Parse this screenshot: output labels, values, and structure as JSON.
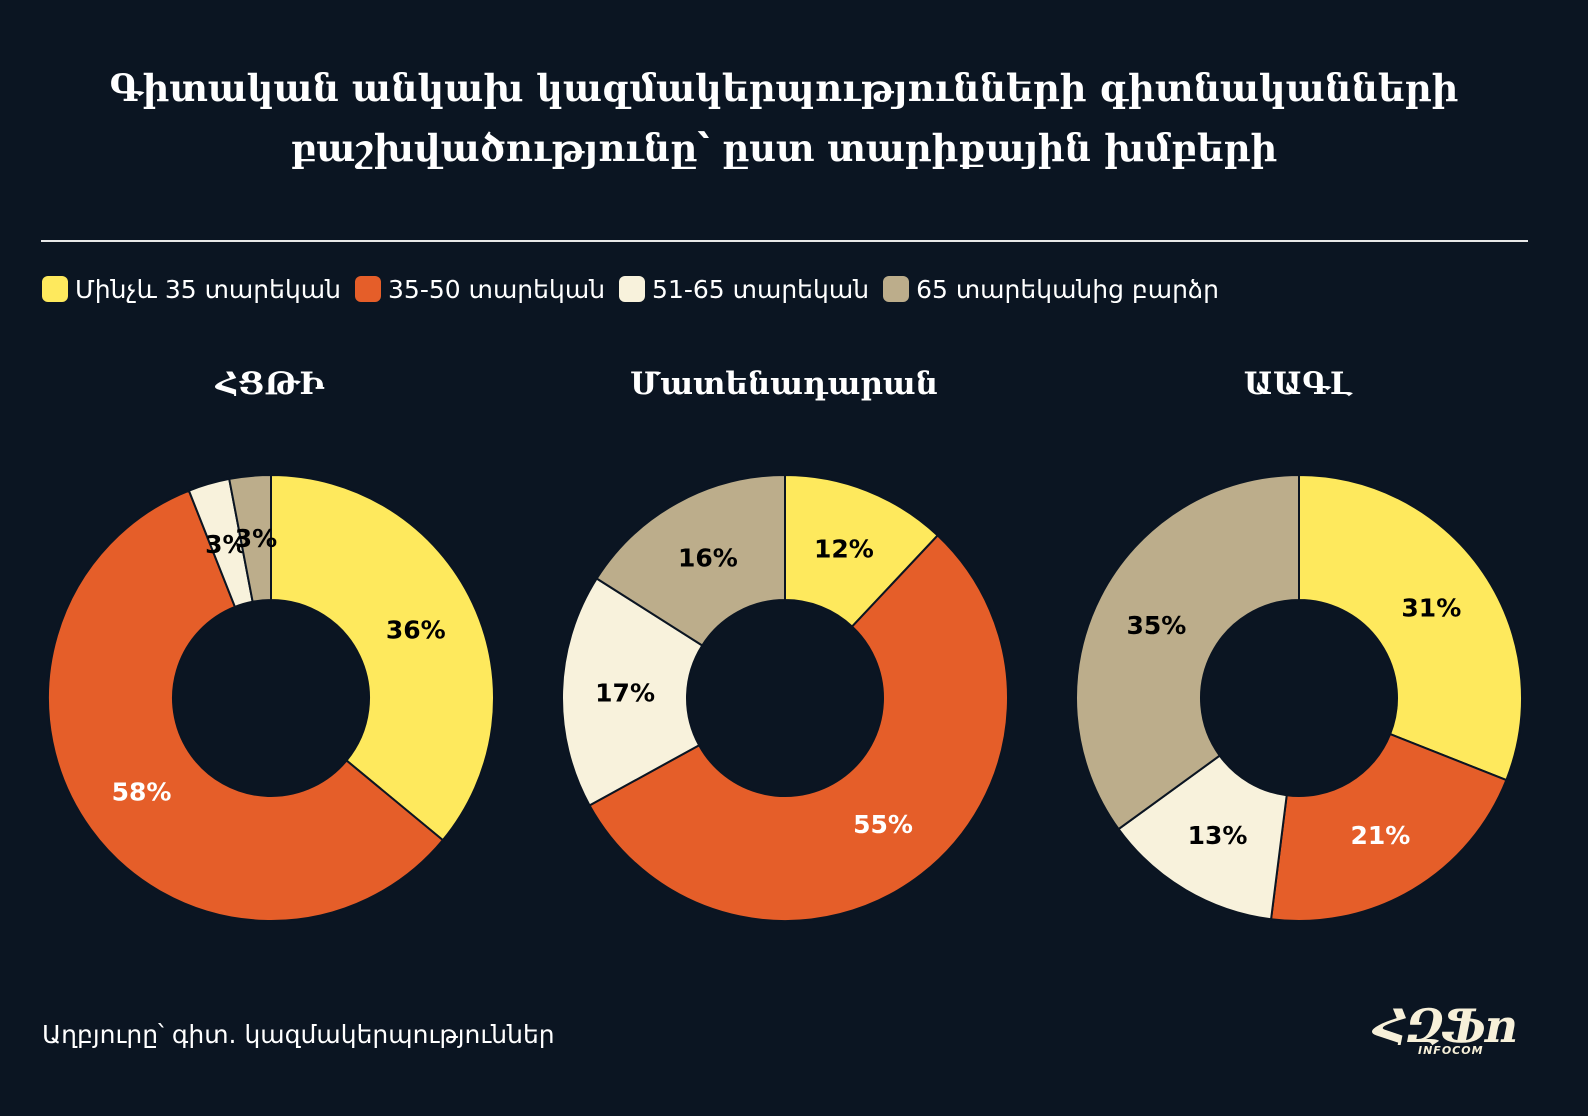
{
  "title": {
    "line1": "Գիտական անկախ կազմակերպությունների գիտնականների",
    "line2": "բաշխվածությունը՝ ըստ տարիքային խմբերի"
  },
  "legend": [
    {
      "label": "Մինչև 35 տարեկան",
      "color": "#fee95d"
    },
    {
      "label": "35-50 տարեկան",
      "color": "#e55e29"
    },
    {
      "label": "51-65 տարեկան",
      "color": "#f8f2dc"
    },
    {
      "label": "65 տարեկանից բարձր",
      "color": "#bcad8b"
    }
  ],
  "chart_data": [
    {
      "type": "pie",
      "title": "ՀՑԹԻ",
      "categories": [
        "Մինչև 35 տարեկան",
        "35-50 տարեկան",
        "51-65 տարեկան",
        "65 տարեկանից բարձր"
      ],
      "values": [
        36,
        58,
        3,
        3
      ],
      "labels": [
        "36%",
        "58%",
        "3%",
        "3%"
      ]
    },
    {
      "type": "pie",
      "title": "Մատենադարան",
      "categories": [
        "Մինչև 35 տարեկան",
        "35-50 տարեկան",
        "51-65 տարեկան",
        "65 տարեկանից բարձր"
      ],
      "values": [
        12,
        55,
        17,
        16
      ],
      "labels": [
        "12%",
        "55%",
        "17%",
        "16%"
      ]
    },
    {
      "type": "pie",
      "title": "ԱԱԳԼ",
      "categories": [
        "Մինչև 35 տարեկան",
        "35-50 տարեկան",
        "51-65 տարեկան",
        "65 տարեկանից բարձր"
      ],
      "values": [
        31,
        21,
        13,
        35
      ],
      "labels": [
        "31%",
        "21%",
        "13%",
        "35%"
      ]
    }
  ],
  "source": "Աղբյուրը՝ գիտ. կազմակերպություններ",
  "logo": {
    "main": "ՀԶՖո",
    "sub": "INFOCOM"
  }
}
